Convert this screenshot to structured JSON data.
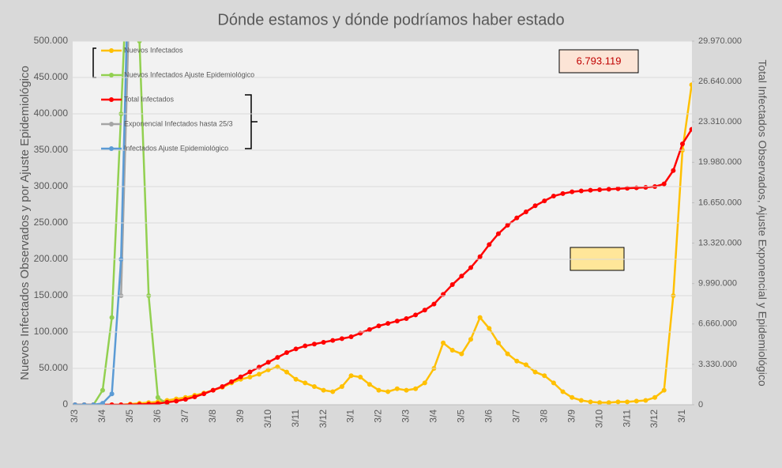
{
  "chart_data": {
    "type": "line",
    "title": "Dónde estamos y dónde podríamos haber estado",
    "y_label": "Nuevos Infectados Observados y por Ajuste Epidemiológico",
    "y2_label": "Total Infectados Observados, Ajuste Exponencial y Epidemiológico",
    "annotation": "6.793.119",
    "legend": "top-left",
    "grid": true,
    "categories": [
      "3/3",
      null,
      null,
      "3/4",
      null,
      null,
      "3/5",
      null,
      null,
      "3/6",
      null,
      null,
      "3/7",
      null,
      null,
      "3/8",
      null,
      null,
      "3/9",
      null,
      null,
      "3/10",
      null,
      null,
      "3/11",
      null,
      null,
      "3/12",
      null,
      null,
      "3/1",
      null,
      null,
      "3/2",
      null,
      null,
      "3/3",
      null,
      null,
      "3/4",
      null,
      null,
      "3/5",
      null,
      null,
      "3/6",
      null,
      null,
      "3/7",
      null,
      null,
      "3/8",
      null,
      null,
      "3/9",
      null,
      null,
      "3/10",
      null,
      null,
      "3/11",
      null,
      null,
      "3/12",
      null,
      null,
      "3/1",
      null
    ],
    "ylim": [
      0,
      500000
    ],
    "yticks": [
      0,
      {
        "value": 50000,
        "label": "50.000"
      },
      {
        "value": 100000,
        "label": "100.000"
      },
      {
        "value": 150000,
        "label": "150.000"
      },
      {
        "value": 200000,
        "label": "200.000"
      },
      {
        "value": 250000,
        "label": "250.000"
      },
      {
        "value": 300000,
        "label": "300.000"
      },
      {
        "value": 350000,
        "label": "350.000"
      },
      {
        "value": 400000,
        "label": "400.000"
      },
      {
        "value": 450000,
        "label": "450.000"
      },
      {
        "value": 500000,
        "label": "500.000"
      }
    ],
    "y2lim": [
      0,
      29970000
    ],
    "y2ticks": [
      0,
      {
        "value": 3330000,
        "label": "3.330.000"
      },
      {
        "value": 6660000,
        "label": "6.660.000"
      },
      {
        "value": 9990000,
        "label": "9.990.000"
      },
      {
        "value": 13320000,
        "label": "13.320.000"
      },
      {
        "value": 16650000,
        "label": "16.650.000"
      },
      {
        "value": 19980000,
        "label": "19.980.000"
      },
      {
        "value": 23310000,
        "label": "23.310.000"
      },
      {
        "value": 26640000,
        "label": "26.640.000"
      },
      {
        "value": 29970000,
        "label": "29.970.000"
      }
    ],
    "series": [
      {
        "name": "Nuevos Infectados",
        "color": "#ffc000",
        "values": [
          0,
          0,
          0,
          0,
          0,
          0,
          1000,
          2000,
          3000,
          4000,
          6000,
          8000,
          10000,
          13000,
          16000,
          20000,
          24000,
          30000,
          35000,
          38000,
          42000,
          48000,
          52000,
          45000,
          35000,
          30000,
          25000,
          20000,
          18000,
          25000,
          40000,
          38000,
          28000,
          20000,
          18000,
          22000,
          20000,
          22000,
          30000,
          50000,
          85000,
          75000,
          70000,
          90000,
          120000,
          105000,
          85000,
          70000,
          60000,
          55000,
          45000,
          40000,
          30000,
          18000,
          10000,
          6000,
          4000,
          3000,
          3000,
          4000,
          4000,
          5000,
          6000,
          10000,
          20000,
          150000,
          350000,
          440000
        ]
      },
      {
        "name": "Nuevos Infectados Ajuste Epidemiológico",
        "color": "#92d050",
        "values": [
          0,
          0,
          0,
          20000,
          120000,
          400000,
          700000,
          500000,
          150000,
          10000,
          1000,
          null,
          null,
          null,
          null,
          null,
          null,
          null,
          null,
          null,
          null,
          null,
          null,
          null,
          null,
          null,
          null,
          null,
          null,
          null,
          null,
          null,
          null,
          null,
          null,
          null,
          null,
          null,
          null,
          null,
          null,
          null,
          null,
          null,
          null,
          null,
          null,
          null,
          null,
          null,
          null,
          null,
          null,
          null,
          null,
          null,
          null,
          null,
          null,
          null,
          null,
          null,
          null,
          null,
          null,
          null,
          null,
          null
        ]
      },
      {
        "name": "Total Infectados",
        "color": "#ff0000",
        "axis": "y2",
        "values": [
          0,
          0,
          0,
          0,
          0,
          0,
          10000,
          30000,
          60000,
          100000,
          200000,
          300000,
          450000,
          650000,
          900000,
          1200000,
          1500000,
          1900000,
          2300000,
          2700000,
          3100000,
          3500000,
          3900000,
          4300000,
          4600000,
          4850000,
          5000000,
          5150000,
          5300000,
          5450000,
          5600000,
          5900000,
          6200000,
          6500000,
          6700000,
          6900000,
          7100000,
          7400000,
          7800000,
          8300000,
          9100000,
          9900000,
          10600000,
          11300000,
          12200000,
          13200000,
          14100000,
          14800000,
          15400000,
          15900000,
          16400000,
          16800000,
          17200000,
          17400000,
          17550000,
          17620000,
          17680000,
          17720000,
          17760000,
          17800000,
          17840000,
          17880000,
          17920000,
          17980000,
          18200000,
          19300000,
          21500000,
          22700000
        ]
      },
      {
        "name": "Exponencial Infectados hasta 25/3",
        "color": "#a5a5a5",
        "values": [
          null,
          null,
          null,
          null,
          null,
          150000,
          600000,
          null,
          null,
          null,
          null,
          null,
          null,
          null,
          null,
          null,
          null,
          null,
          null,
          null,
          null,
          null,
          null,
          null,
          null,
          null,
          null,
          null,
          null,
          null,
          null,
          null,
          null,
          null,
          null,
          null,
          null,
          null,
          null,
          null,
          null,
          null,
          null,
          null,
          null,
          null,
          null,
          null,
          null,
          null,
          null,
          null,
          null,
          null,
          null,
          null,
          null,
          null,
          null,
          null,
          null,
          null,
          null,
          null,
          null,
          null,
          null,
          null
        ]
      },
      {
        "name": "Infectados Ajuste Epidemiológico",
        "color": "#5b9bd5",
        "values": [
          0,
          0,
          0,
          2000,
          15000,
          200000,
          700000,
          null,
          null,
          null,
          null,
          null,
          null,
          null,
          null,
          null,
          null,
          null,
          null,
          null,
          null,
          null,
          null,
          null,
          null,
          null,
          null,
          null,
          null,
          null,
          null,
          null,
          null,
          null,
          null,
          null,
          null,
          null,
          null,
          null,
          null,
          null,
          null,
          null,
          null,
          null,
          null,
          null,
          null,
          null,
          null,
          null,
          null,
          null,
          null,
          null,
          null,
          null,
          null,
          null,
          null,
          null,
          null,
          null,
          null,
          null,
          null,
          null
        ]
      }
    ]
  }
}
